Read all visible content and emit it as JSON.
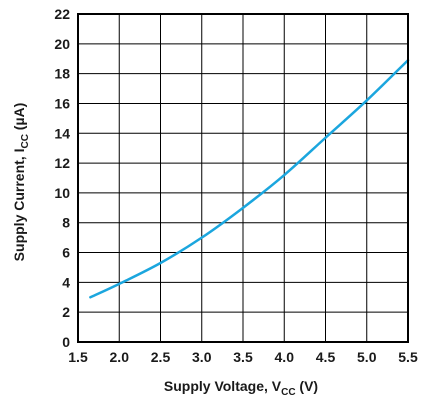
{
  "chart_data": {
    "type": "line",
    "xlabel": {
      "main": "Supply Voltage, V",
      "sub": "CC",
      "unit": " (V)"
    },
    "ylabel": {
      "main": "Supply Current, I",
      "sub": "CC",
      "unit": " (µA)"
    },
    "xlim": [
      1.5,
      5.5
    ],
    "ylim": [
      0,
      22
    ],
    "xticks": [
      1.5,
      2.0,
      2.5,
      3.0,
      3.5,
      4.0,
      4.5,
      5.0,
      5.5
    ],
    "xtick_labels": [
      "1.5",
      "2.0",
      "2.5",
      "3.0",
      "3.5",
      "4.0",
      "4.5",
      "5.0",
      "5.5"
    ],
    "yticks": [
      0,
      2,
      4,
      6,
      8,
      10,
      12,
      14,
      16,
      18,
      20,
      22
    ],
    "ytick_labels": [
      "0",
      "2",
      "4",
      "6",
      "8",
      "10",
      "12",
      "14",
      "16",
      "18",
      "20",
      "22"
    ],
    "grid": true,
    "line_color": "#1ba6de",
    "series": [
      {
        "x": [
          1.65,
          2.0,
          2.5,
          3.0,
          3.5,
          4.0,
          4.5,
          5.0,
          5.5
        ],
        "y": [
          3.0,
          3.9,
          5.3,
          7.0,
          9.0,
          11.2,
          13.7,
          16.2,
          18.9
        ]
      }
    ]
  }
}
